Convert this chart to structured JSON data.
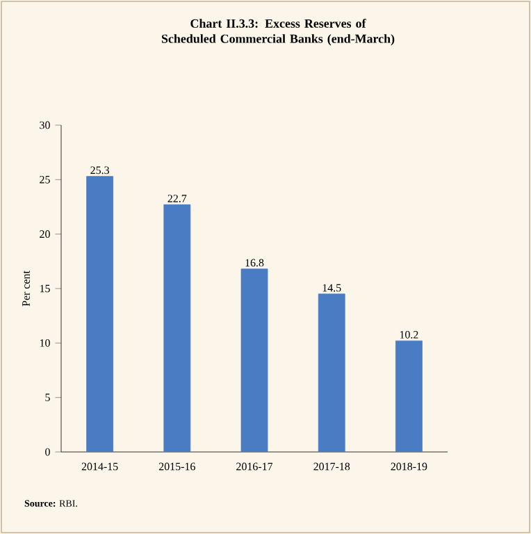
{
  "chart_data": {
    "type": "bar",
    "title": "Chart II.3.3: Excess Reserves of Scheduled Commercial Banks (end-March)",
    "ylabel": "Per cent",
    "categories": [
      "2014-15",
      "2015-16",
      "2016-17",
      "2017-18",
      "2018-19"
    ],
    "values": [
      25.3,
      22.7,
      16.8,
      14.5,
      10.2
    ],
    "color": "#4a7cc4",
    "ylim": [
      0,
      30
    ],
    "yticks": [
      0,
      5,
      10,
      15,
      20,
      25,
      30
    ],
    "data_labels": true,
    "annotations": [
      "**Source:** RBI."
    ]
  }
}
